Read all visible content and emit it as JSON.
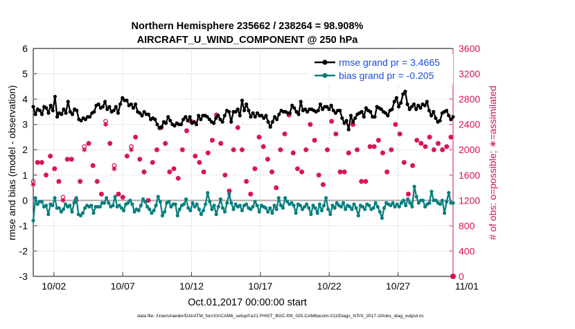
{
  "chart_data": {
    "type": "line",
    "title": "Northern Hemisphere 235662 / 238264 = 98.908%",
    "subtitle": "AIRCRAFT_U_WIND_COMPONENT @ 250 hPa",
    "xlabel": "Oct.01,2017 00:00:00 start",
    "ylabel": "rmse and bias (model - observation)",
    "y2label": "# of obs: o=possible; ∗=assimilated",
    "footer": "data file: /Users/raeder/DAI/ATM_forcXX/CAM6_setup/f.e21.FHIST_BGC.f09_025.CAM6assim.011/Diags_NTrS_2017-10/obs_diag_output.nc",
    "xlim": [
      0.5,
      31
    ],
    "ylim": [
      -3,
      6
    ],
    "y2lim": [
      0,
      3600
    ],
    "xticks": [
      2,
      7,
      12,
      17,
      22,
      27,
      32
    ],
    "xtick_labels": [
      "10/02",
      "10/07",
      "10/12",
      "10/17",
      "10/22",
      "10/27",
      "11/01"
    ],
    "yticks": [
      -3,
      -2,
      -1,
      0,
      1,
      2,
      3,
      4,
      5,
      6
    ],
    "ytick_labels": [
      "-3",
      "-2",
      "-1",
      "0",
      "1",
      "2",
      "3",
      "4",
      "5",
      "6"
    ],
    "y2ticks": [
      0,
      400,
      800,
      1200,
      1600,
      2000,
      2400,
      2800,
      3200,
      3600
    ],
    "y2tick_labels": [
      "0",
      "400",
      "800",
      "1200",
      "1600",
      "2000",
      "2400",
      "2800",
      "3200",
      "3600"
    ],
    "zero_line": 0,
    "series": [
      {
        "name": "rmse",
        "legend": "rmse grand pr = 3.4665",
        "color": "#000000",
        "values": [
          3.7,
          3.4,
          3.6,
          3.55,
          3.4,
          3.7,
          3.65,
          3.45,
          3.75,
          3.55,
          4.1,
          3.3,
          3.45,
          3.4,
          3.6,
          3.45,
          3.9,
          3.5,
          3.4,
          3.6,
          3.55,
          3.2,
          3.15,
          3.25,
          3.2,
          3.3,
          3.3,
          3.45,
          3.5,
          3.75,
          3.8,
          3.65,
          3.7,
          3.9,
          3.6,
          3.7,
          3.5,
          3.55,
          3.7,
          3.45,
          3.8,
          4.05,
          3.95,
          3.95,
          3.75,
          3.8,
          3.65,
          3.8,
          3.5,
          3.45,
          3.35,
          3.5,
          3.4,
          3.4,
          3.2,
          3.25,
          3.2,
          3.0,
          2.85,
          2.9,
          3.1,
          3.05,
          3.3,
          3.15,
          3.0,
          2.95,
          3.05,
          3.0,
          3.0,
          3.2,
          3.3,
          3.15,
          3.3,
          3.05,
          3.1,
          3.0,
          3.35,
          3.2,
          3.35,
          3.35,
          3.3,
          3.2,
          3.1,
          3.05,
          3.25,
          3.35,
          3.2,
          3.1,
          3.35,
          3.55,
          3.5,
          3.1,
          3.5,
          3.5,
          3.6,
          3.35,
          3.95,
          3.55,
          3.8,
          3.55,
          3.3,
          3.45,
          3.3,
          3.45,
          3.35,
          3.35,
          3.25,
          3.35,
          3.1,
          2.9,
          3.1,
          3.3,
          3.2,
          3.4,
          3.55,
          3.5,
          3.5,
          3.45,
          3.45,
          3.75,
          3.65,
          3.5,
          3.4,
          3.9,
          3.55,
          3.6,
          3.5,
          3.6,
          3.6,
          3.55,
          3.5,
          3.55,
          3.8,
          3.6,
          3.7,
          3.7,
          3.6,
          3.75,
          3.55,
          3.45,
          3.55,
          3.55,
          3.25,
          3.05,
          3.15,
          2.8,
          3.35,
          3.1,
          3.25,
          3.4,
          3.45,
          3.5,
          3.3,
          3.65,
          3.55,
          3.5,
          3.3,
          3.3,
          3.7,
          3.65,
          3.6,
          3.5,
          3.45,
          3.35,
          3.55,
          3.6,
          3.9,
          4.05,
          3.7,
          3.85,
          4.2,
          4.3,
          3.8,
          3.6,
          3.7,
          3.8,
          3.6,
          3.75,
          3.65,
          3.8,
          3.75,
          3.9,
          3.55,
          3.35,
          3.5,
          3.25,
          3.1,
          3.15,
          3.45,
          3.5,
          3.55,
          3.35,
          3.2,
          3.3
        ]
      },
      {
        "name": "bias",
        "legend": "bias grand pr = -0.205",
        "color": "#0a7f7f",
        "values": [
          -0.8,
          0.1,
          -0.15,
          -0.05,
          -0.05,
          -0.25,
          -0.2,
          -0.55,
          -0.15,
          -0.2,
          0.1,
          -0.3,
          -0.3,
          -0.45,
          -0.35,
          -0.15,
          -0.25,
          -0.2,
          -0.45,
          -0.1,
          0.1,
          -0.55,
          -0.6,
          -0.5,
          -0.3,
          -0.2,
          -0.25,
          -0.2,
          -0.5,
          -0.25,
          -0.25,
          -0.25,
          -0.1,
          -0.1,
          0.1,
          -0.1,
          -0.25,
          -0.2,
          0.15,
          -0.25,
          -0.2,
          -0.3,
          -0.4,
          -0.15,
          -0.1,
          0.0,
          -0.15,
          -0.45,
          -0.35,
          -0.4,
          -0.2,
          0.05,
          -0.05,
          -0.25,
          -0.35,
          -0.5,
          -0.4,
          -0.2,
          0.15,
          -0.05,
          -0.6,
          -0.45,
          -0.1,
          -0.05,
          -0.25,
          -0.15,
          -0.15,
          -0.6,
          -0.35,
          -0.2,
          -0.15,
          0.05,
          -0.3,
          -0.4,
          -0.1,
          -0.25,
          -0.15,
          -0.35,
          -0.55,
          -0.4,
          -0.15,
          0.3,
          -0.05,
          -0.35,
          -0.2,
          -0.55,
          -0.25,
          0.05,
          -0.3,
          -0.45,
          -0.1,
          0.25,
          -0.1,
          -0.35,
          -0.15,
          -0.25,
          -0.2,
          -0.4,
          -0.2,
          -0.15,
          -0.3,
          -0.35,
          -0.25,
          -0.05,
          -0.2,
          -0.45,
          -0.2,
          -0.25,
          -0.3,
          -0.45,
          -0.3,
          -0.5,
          -0.2,
          -0.35,
          0.1,
          -0.2,
          -0.3,
          0.1,
          -0.05,
          -0.15,
          -0.1,
          -0.2,
          -0.5,
          -0.15,
          -0.2,
          -0.35,
          -0.25,
          -0.15,
          -0.3,
          -0.55,
          -0.2,
          -0.3,
          -0.5,
          -0.15,
          -0.4,
          -0.2,
          0.1,
          -0.35,
          -0.55,
          -0.2,
          -0.3,
          -0.1,
          -0.2,
          -0.25,
          -0.1,
          -0.35,
          -0.2,
          -0.25,
          -0.35,
          -0.15,
          -0.3,
          -0.6,
          -0.2,
          -0.25,
          -0.35,
          -0.15,
          -0.2,
          -0.35,
          -0.3,
          -0.1,
          -0.25,
          -0.45,
          -0.7,
          -0.3,
          -0.1,
          -0.15,
          -0.2,
          -0.1,
          -0.25,
          -0.15,
          -0.25,
          -0.1,
          0.0,
          -0.2,
          0.05,
          -0.1,
          -0.25,
          0.55,
          0.15,
          -0.1,
          0.0,
          0.0,
          -0.25,
          -0.15,
          -0.1,
          0.35,
          0.0,
          0.0,
          -0.1,
          -0.15,
          0.0,
          -0.5,
          -0.05,
          0.3,
          -0.1,
          -0.1
        ]
      },
      {
        "name": "obs_possible",
        "color": "#d6104f",
        "marker": "o",
        "axis": "right",
        "values": [
          1500,
          2100,
          1800,
          1800,
          1800,
          1850,
          1600,
          1950,
          1900,
          1850,
          1700,
          1600,
          1500,
          1250,
          1250,
          1600,
          1850,
          1900,
          1850,
          1200,
          1200,
          1500,
          1500,
          1850,
          2050,
          2000,
          2100,
          1800,
          1750,
          1650,
          1500,
          1350,
          1300,
          1750,
          2450,
          2400,
          2100,
          1800,
          1750,
          1650,
          1300,
          1250,
          1250,
          1800,
          1900,
          2000,
          2050,
          2000,
          2200,
          2200,
          1850,
          1800,
          1650,
          1600,
          1200,
          1200,
          1800,
          1900,
          2000,
          2100,
          2350,
          2250,
          2100,
          1800,
          1650,
          1600,
          1700,
          1550,
          1550,
          1950,
          2000,
          2100,
          2300,
          2400,
          2450,
          2200,
          1900,
          1850,
          1800,
          1550,
          1650,
          1650,
          1950,
          2000,
          2150,
          2450,
          2550,
          2350,
          2100,
          1850,
          1600,
          1500,
          1350,
          1750,
          2000,
          2250,
          2350,
          2200,
          2000,
          1750,
          1500,
          1450,
          1300,
          1500,
          1700,
          2100,
          2200,
          2150,
          2050,
          1900,
          1850,
          1700,
          1650,
          1500,
          1400,
          1600,
          2000,
          2100,
          2250,
          2300,
          2550,
          2250,
          1950,
          1800,
          1700,
          1650,
          1650,
          1900,
          2000,
          2150,
          2400,
          2250,
          2150,
          1700,
          1600,
          1400,
          1450,
          1850,
          2000,
          2100,
          2450,
          2250,
          2250,
          2000,
          1650,
          1750,
          1650,
          1800,
          1950,
          2100,
          2400,
          2250,
          2000,
          1800,
          1500,
          1550,
          1500,
          1750,
          2050,
          2100,
          2050,
          1950,
          2150,
          2050,
          1950,
          1900,
          1650,
          1700,
          2000,
          2200,
          2400,
          2500,
          2250,
          2000,
          1800,
          1400,
          1300,
          1500,
          1750,
          2050,
          2150,
          2000,
          2100,
          2200,
          2050,
          2000,
          2200,
          2150,
          2000,
          1850,
          2100,
          2050,
          2000,
          1750,
          2050,
          2000,
          2200,
          2400
        ]
      },
      {
        "name": "obs_assimilated",
        "color": "#d6104f",
        "marker": "*",
        "axis": "right",
        "values": [
          1450,
          2100,
          1800,
          1800,
          1800,
          1850,
          1600,
          1950,
          1900,
          1850,
          1700,
          1550,
          1500,
          1250,
          1200,
          1600,
          1850,
          1900,
          1850,
          1200,
          1200,
          1450,
          1500,
          1850,
          2000,
          2000,
          2100,
          1800,
          1750,
          1600,
          1500,
          1350,
          1300,
          1750,
          2400,
          2400,
          2100,
          1800,
          1700,
          1600,
          1300,
          1250,
          1250,
          1800,
          1900,
          2000,
          2000,
          2000,
          2200,
          2200,
          1850,
          1800,
          1650,
          1600,
          1200,
          1200,
          1800,
          1900,
          2000,
          2100,
          2350,
          2250,
          2100,
          1800,
          1650,
          1600,
          1700,
          1550,
          1550,
          1950,
          2000,
          2100,
          2300,
          2400,
          2450,
          2200,
          1900,
          1850,
          1800,
          1550,
          1650,
          1650,
          1950,
          2000,
          2150,
          2450,
          2550,
          2350,
          2100,
          1850,
          1600,
          1500,
          1350,
          1750,
          2000,
          2250,
          2350,
          2200,
          2000,
          1750,
          1500,
          1450,
          1300,
          1500,
          1700,
          2100,
          2200,
          2150,
          2050,
          1900,
          1850,
          1700,
          1650,
          1500,
          1400,
          1600,
          2000,
          2100,
          2250,
          2300,
          2550,
          2250,
          1950,
          1800,
          1700,
          1650,
          1650,
          1900,
          2000,
          2150,
          2400,
          2250,
          2150,
          1700,
          1600,
          1400,
          1450,
          1850,
          2000,
          2100,
          2450,
          2250,
          2250,
          2000,
          1650,
          1750,
          1650,
          1800,
          1950,
          2100,
          2400,
          2250,
          2000,
          1800,
          1500,
          1550,
          1500,
          1750,
          2050,
          2100,
          2050,
          1950,
          2150,
          2050,
          1950,
          1900,
          1650,
          1700,
          2000,
          2200,
          2400,
          2500,
          2250,
          2000,
          1800,
          1400,
          1300,
          1500,
          1750,
          2050,
          2150,
          2000,
          2100,
          2200,
          2050,
          2000,
          2200,
          2150,
          2000,
          1850,
          2100,
          2050,
          2000,
          1750,
          2050,
          2000,
          2200,
          2400
        ]
      }
    ]
  }
}
